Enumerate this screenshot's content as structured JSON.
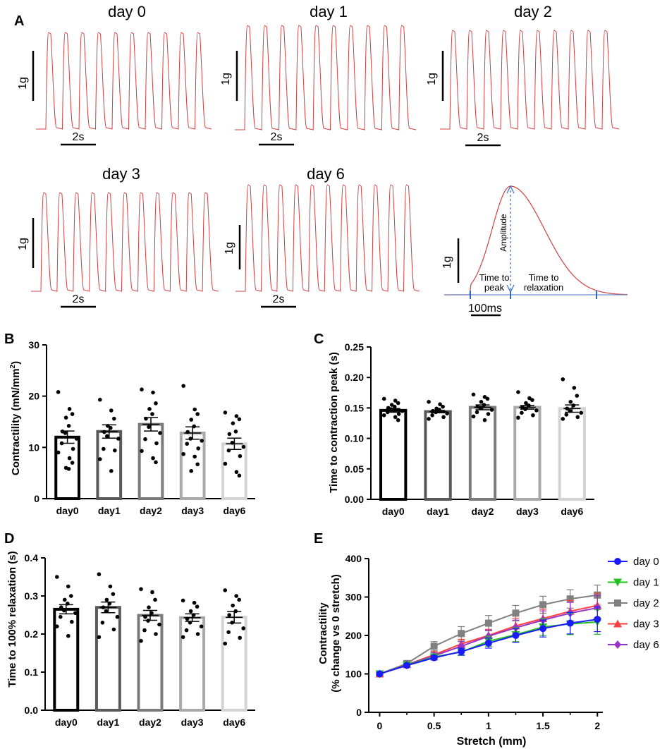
{
  "panel_letters": [
    "A",
    "B",
    "C",
    "D",
    "E"
  ],
  "panel_a": {
    "traces": [
      {
        "title": "day 0",
        "scale_y": "1g",
        "scale_x": "2s"
      },
      {
        "title": "day 1",
        "scale_y": "1g",
        "scale_x": "2s"
      },
      {
        "title": "day 2",
        "scale_y": "1g",
        "scale_x": "2s"
      },
      {
        "title": "day 3",
        "scale_y": "1g",
        "scale_x": "2s"
      },
      {
        "title": "day 6",
        "scale_y": "1g",
        "scale_x": "2s"
      }
    ],
    "schematic": {
      "amplitude": "Amplitude",
      "time_to_peak_l1": "Time to",
      "time_to_peak_l2": "peak",
      "time_to_relax_l1": "Time to",
      "time_to_relax_l2": "relaxation",
      "scale_y": "1g",
      "scale_x": "100ms"
    },
    "trace_color": "#d04040"
  },
  "chart_data": [
    {
      "panel": "B",
      "type": "bar",
      "categories": [
        "day0",
        "day1",
        "day2",
        "day3",
        "day6"
      ],
      "values": [
        12.0,
        13.1,
        14.5,
        12.8,
        10.7
      ],
      "sem": [
        1.2,
        1.3,
        1.3,
        1.2,
        1.1
      ],
      "points": [
        [
          20.8,
          17.5,
          16.5,
          15.8,
          14.2,
          13.1,
          12.8,
          11.7,
          10.8,
          9.7,
          9.0,
          7.9,
          7.0,
          6.0,
          5.8
        ],
        [
          19.3,
          17.2,
          15.6,
          14.2,
          13.8,
          13.0,
          12.2,
          11.7,
          9.7,
          9.4,
          7.7,
          5.4
        ],
        [
          21.3,
          20.7,
          18.6,
          17.5,
          16.5,
          15.6,
          14.0,
          12.8,
          11.6,
          10.8,
          9.3,
          7.9,
          7.1
        ],
        [
          22.0,
          17.4,
          16.5,
          15.4,
          14.1,
          13.0,
          11.7,
          11.3,
          10.7,
          9.8,
          8.7,
          8.2,
          6.7,
          5.4
        ],
        [
          16.8,
          16.1,
          15.5,
          14.7,
          13.1,
          12.6,
          10.9,
          10.1,
          9.4,
          8.3,
          6.8,
          5.2,
          4.5
        ]
      ],
      "ylabel": "Contractility (mN/mm",
      "ylabel_sup": "2",
      "ylabel_end": ")",
      "ylim": [
        0,
        30
      ],
      "yticks": [
        0,
        10,
        20,
        30
      ],
      "bar_colors": [
        "#000000",
        "#5a5a5a",
        "#7b7b7b",
        "#a9a9a9",
        "#d4d4d4"
      ]
    },
    {
      "panel": "C",
      "type": "bar",
      "categories": [
        "day0",
        "day1",
        "day2",
        "day3",
        "day6"
      ],
      "values": [
        0.146,
        0.144,
        0.151,
        0.151,
        0.149
      ],
      "sem": [
        0.003,
        0.002,
        0.004,
        0.003,
        0.006
      ],
      "points": [
        [
          0.165,
          0.162,
          0.158,
          0.155,
          0.152,
          0.15,
          0.148,
          0.145,
          0.143,
          0.14,
          0.138,
          0.135,
          0.13
        ],
        [
          0.16,
          0.156,
          0.152,
          0.149,
          0.147,
          0.145,
          0.143,
          0.141,
          0.138,
          0.135,
          0.132
        ],
        [
          0.172,
          0.168,
          0.165,
          0.16,
          0.155,
          0.152,
          0.15,
          0.147,
          0.143,
          0.14,
          0.136,
          0.13
        ],
        [
          0.176,
          0.166,
          0.163,
          0.158,
          0.154,
          0.151,
          0.148,
          0.146,
          0.142,
          0.138,
          0.134
        ],
        [
          0.197,
          0.183,
          0.17,
          0.16,
          0.154,
          0.149,
          0.145,
          0.142,
          0.139,
          0.135,
          0.132
        ]
      ],
      "ylabel": "Time to contraction peak (s)",
      "ylim": [
        0,
        0.25
      ],
      "yticks": [
        0.0,
        0.05,
        0.1,
        0.15,
        0.2,
        0.25
      ],
      "tick_labels": [
        "0.00",
        "0.05",
        "0.10",
        "0.15",
        "0.20",
        "0.25"
      ],
      "bar_colors": [
        "#000000",
        "#5a5a5a",
        "#7b7b7b",
        "#a9a9a9",
        "#d4d4d4"
      ]
    },
    {
      "panel": "D",
      "type": "bar",
      "categories": [
        "day0",
        "day1",
        "day2",
        "day3",
        "day6"
      ],
      "values": [
        0.265,
        0.27,
        0.249,
        0.243,
        0.244
      ],
      "sem": [
        0.012,
        0.014,
        0.013,
        0.01,
        0.015
      ],
      "points": [
        [
          0.35,
          0.325,
          0.3,
          0.29,
          0.28,
          0.27,
          0.262,
          0.255,
          0.245,
          0.232,
          0.22,
          0.195
        ],
        [
          0.357,
          0.325,
          0.305,
          0.29,
          0.28,
          0.27,
          0.26,
          0.245,
          0.23,
          0.212,
          0.192
        ],
        [
          0.318,
          0.31,
          0.29,
          0.27,
          0.255,
          0.245,
          0.235,
          0.225,
          0.21,
          0.2,
          0.182
        ],
        [
          0.288,
          0.282,
          0.272,
          0.26,
          0.25,
          0.24,
          0.23,
          0.22,
          0.21,
          0.2,
          0.192
        ],
        [
          0.315,
          0.3,
          0.29,
          0.275,
          0.26,
          0.25,
          0.23,
          0.215,
          0.205,
          0.19,
          0.175
        ]
      ],
      "ylabel": "Time to 100% relaxation (s)",
      "ylim": [
        0,
        0.4
      ],
      "yticks": [
        0.0,
        0.1,
        0.2,
        0.3,
        0.4
      ],
      "tick_labels": [
        "0.0",
        "0.1",
        "0.2",
        "0.3",
        "0.4"
      ],
      "bar_colors": [
        "#000000",
        "#5a5a5a",
        "#7b7b7b",
        "#a9a9a9",
        "#d4d4d4"
      ]
    },
    {
      "panel": "E",
      "type": "line",
      "x": [
        0,
        0.25,
        0.5,
        0.75,
        1.0,
        1.25,
        1.5,
        1.75,
        2.0
      ],
      "series": [
        {
          "name": "day 0",
          "color": "#1a1aff",
          "marker": "circle",
          "values": [
            100,
            122,
            142,
            158,
            180,
            200,
            218,
            232,
            242
          ],
          "err": [
            3,
            4,
            6,
            9,
            13,
            18,
            22,
            28,
            32
          ]
        },
        {
          "name": "day 1",
          "color": "#22c022",
          "marker": "triangle-down",
          "values": [
            100,
            123,
            144,
            157,
            185,
            202,
            222,
            230,
            235
          ],
          "err": [
            3,
            4,
            6,
            9,
            13,
            18,
            22,
            28,
            32
          ]
        },
        {
          "name": "day 2",
          "color": "#808080",
          "marker": "square",
          "values": [
            100,
            127,
            172,
            205,
            232,
            258,
            280,
            295,
            305
          ],
          "err": [
            3,
            5,
            12,
            18,
            20,
            20,
            22,
            24,
            26
          ]
        },
        {
          "name": "day 3",
          "color": "#ff4040",
          "marker": "triangle-up",
          "values": [
            100,
            124,
            150,
            178,
            200,
            225,
            244,
            263,
            278
          ],
          "err": [
            3,
            4,
            8,
            12,
            16,
            20,
            24,
            28,
            32
          ]
        },
        {
          "name": "day 6",
          "color": "#9933cc",
          "marker": "diamond",
          "values": [
            100,
            124,
            147,
            172,
            198,
            220,
            240,
            258,
            272
          ],
          "err": [
            3,
            4,
            8,
            12,
            16,
            20,
            24,
            28,
            32
          ]
        }
      ],
      "xlabel": "Stretch (mm)",
      "ylabel_l1": "Contractility",
      "ylabel_l2": "(% change vs 0 stretch)",
      "xlim": [
        -0.1,
        2.05
      ],
      "ylim": [
        0,
        400
      ],
      "xticks": [
        0,
        0.5,
        1,
        1.5,
        2
      ],
      "xtick_labels": [
        "0",
        "0.5",
        "1",
        "1.5",
        "2"
      ],
      "yticks": [
        0,
        100,
        200,
        300,
        400
      ],
      "legend_position": "right"
    }
  ]
}
